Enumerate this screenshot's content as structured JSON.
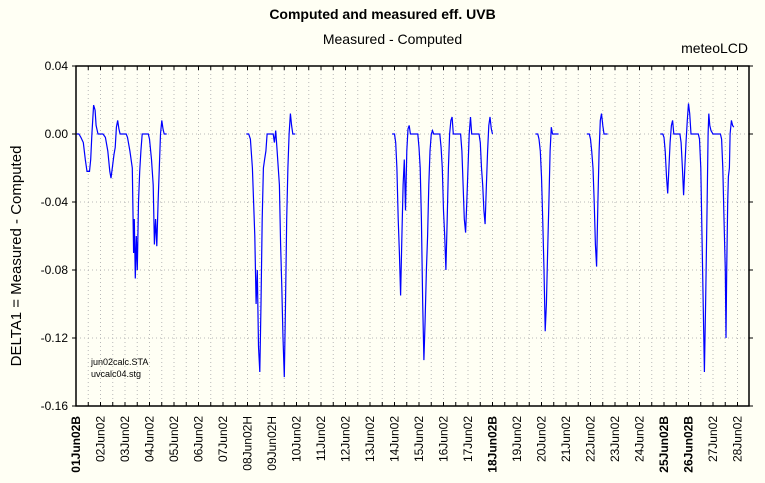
{
  "chart_data": {
    "type": "line",
    "title": "Computed and measured eff. UVB",
    "subtitle": "Measured - Computed",
    "brand": "meteoLCD",
    "ylabel": "DELTA1 = Measured - Computed",
    "xlabel": "",
    "ylim": [
      -0.16,
      0.04
    ],
    "yticks": [
      "0.04",
      "0.00",
      "-0.04",
      "-0.08",
      "-0.12",
      "-0.16"
    ],
    "ytick_values": [
      0.04,
      0.0,
      -0.04,
      -0.08,
      -0.12,
      -0.16
    ],
    "xlim_days": [
      0,
      27.45
    ],
    "grid": true,
    "line_color": "#0000ff",
    "xticks": [
      {
        "label": "01Jun02B",
        "bold": true
      },
      {
        "label": "02Jun02",
        "bold": false
      },
      {
        "label": "03Jun02",
        "bold": false
      },
      {
        "label": "04Jun02",
        "bold": false
      },
      {
        "label": "05Jun02",
        "bold": false
      },
      {
        "label": "06Jun02",
        "bold": false
      },
      {
        "label": "07Jun02",
        "bold": false
      },
      {
        "label": "08Jun02H",
        "bold": false
      },
      {
        "label": "09Jun02H",
        "bold": false
      },
      {
        "label": "10Jun02",
        "bold": false
      },
      {
        "label": "11Jun02",
        "bold": false
      },
      {
        "label": "12Jun02",
        "bold": false
      },
      {
        "label": "13Jun02",
        "bold": false
      },
      {
        "label": "14Jun02",
        "bold": false
      },
      {
        "label": "15Jun02",
        "bold": false
      },
      {
        "label": "16Jun02",
        "bold": false
      },
      {
        "label": "17Jun02",
        "bold": false
      },
      {
        "label": "18Jun02B",
        "bold": true
      },
      {
        "label": "19Jun02",
        "bold": false
      },
      {
        "label": "20Jun02",
        "bold": false
      },
      {
        "label": "21Jun02",
        "bold": false
      },
      {
        "label": "22Jun02",
        "bold": false
      },
      {
        "label": "23Jun02",
        "bold": false
      },
      {
        "label": "24Jun02",
        "bold": false
      },
      {
        "label": "25Jun02B",
        "bold": true
      },
      {
        "label": "26Jun02B",
        "bold": true
      },
      {
        "label": "27Jun02",
        "bold": false
      },
      {
        "label": "28Jun02",
        "bold": false
      }
    ],
    "annotations": [
      "jun02calc.STA",
      "uvcalc04.stg"
    ],
    "series": [
      {
        "name": "DELTA1",
        "segments": [
          [
            [
              0.0,
              0.0
            ],
            [
              0.12,
              0.0
            ],
            [
              0.2,
              -0.002
            ],
            [
              0.3,
              -0.005
            ],
            [
              0.38,
              -0.015
            ],
            [
              0.45,
              -0.022
            ],
            [
              0.55,
              -0.022
            ],
            [
              0.6,
              -0.015
            ],
            [
              0.65,
              0.0
            ],
            [
              0.72,
              0.017
            ],
            [
              0.78,
              0.014
            ],
            [
              0.82,
              0.005
            ],
            [
              0.9,
              0.0
            ],
            [
              1.1,
              0.0
            ],
            [
              1.2,
              -0.002
            ],
            [
              1.3,
              -0.01
            ],
            [
              1.38,
              -0.022
            ],
            [
              1.43,
              -0.026
            ],
            [
              1.48,
              -0.02
            ],
            [
              1.55,
              -0.012
            ],
            [
              1.6,
              -0.008
            ],
            [
              1.65,
              0.004
            ],
            [
              1.7,
              0.008
            ],
            [
              1.75,
              0.003
            ],
            [
              1.8,
              0.0
            ],
            [
              2.05,
              0.0
            ],
            [
              2.1,
              -0.002
            ],
            [
              2.2,
              -0.01
            ],
            [
              2.3,
              -0.02
            ],
            [
              2.35,
              -0.07
            ],
            [
              2.38,
              -0.05
            ],
            [
              2.42,
              -0.085
            ],
            [
              2.46,
              -0.06
            ],
            [
              2.5,
              -0.08
            ],
            [
              2.55,
              -0.04
            ],
            [
              2.6,
              -0.022
            ],
            [
              2.65,
              -0.01
            ],
            [
              2.7,
              0.0
            ],
            [
              2.95,
              0.0
            ],
            [
              3.0,
              -0.003
            ],
            [
              3.08,
              -0.015
            ],
            [
              3.15,
              -0.03
            ],
            [
              3.2,
              -0.065
            ],
            [
              3.25,
              -0.05
            ],
            [
              3.3,
              -0.066
            ],
            [
              3.35,
              -0.04
            ],
            [
              3.4,
              -0.02
            ],
            [
              3.45,
              0.0
            ],
            [
              3.5,
              0.008
            ],
            [
              3.55,
              0.003
            ],
            [
              3.6,
              0.0
            ],
            [
              3.7,
              0.0
            ]
          ],
          [
            [
              6.95,
              0.0
            ],
            [
              7.05,
              0.0
            ],
            [
              7.12,
              -0.003
            ],
            [
              7.2,
              -0.02
            ],
            [
              7.25,
              -0.04
            ],
            [
              7.3,
              -0.06
            ],
            [
              7.35,
              -0.1
            ],
            [
              7.4,
              -0.08
            ],
            [
              7.45,
              -0.125
            ],
            [
              7.5,
              -0.14
            ],
            [
              7.55,
              -0.1
            ],
            [
              7.6,
              -0.05
            ],
            [
              7.65,
              -0.02
            ],
            [
              7.7,
              -0.015
            ],
            [
              7.75,
              -0.01
            ],
            [
              7.8,
              0.0
            ],
            [
              8.05,
              0.0
            ],
            [
              8.1,
              -0.005
            ],
            [
              8.15,
              0.002
            ],
            [
              8.2,
              -0.008
            ],
            [
              8.3,
              -0.03
            ],
            [
              8.35,
              -0.065
            ],
            [
              8.4,
              -0.09
            ],
            [
              8.45,
              -0.12
            ],
            [
              8.5,
              -0.143
            ],
            [
              8.55,
              -0.1
            ],
            [
              8.6,
              -0.05
            ],
            [
              8.65,
              -0.02
            ],
            [
              8.7,
              0.0
            ],
            [
              8.75,
              0.012
            ],
            [
              8.8,
              0.005
            ],
            [
              8.85,
              0.0
            ],
            [
              8.95,
              0.0
            ]
          ],
          [
            [
              12.9,
              0.0
            ],
            [
              13.0,
              0.0
            ],
            [
              13.05,
              -0.005
            ],
            [
              13.1,
              -0.02
            ],
            [
              13.15,
              -0.05
            ],
            [
              13.2,
              -0.07
            ],
            [
              13.25,
              -0.095
            ],
            [
              13.3,
              -0.06
            ],
            [
              13.35,
              -0.03
            ],
            [
              13.4,
              -0.015
            ],
            [
              13.45,
              -0.045
            ],
            [
              13.5,
              -0.01
            ],
            [
              13.55,
              0.003
            ],
            [
              13.6,
              0.005
            ],
            [
              13.65,
              0.0
            ],
            [
              13.95,
              0.0
            ],
            [
              14.0,
              -0.008
            ],
            [
              14.05,
              -0.02
            ],
            [
              14.1,
              -0.05
            ],
            [
              14.15,
              -0.1
            ],
            [
              14.2,
              -0.133
            ],
            [
              14.25,
              -0.11
            ],
            [
              14.3,
              -0.08
            ],
            [
              14.35,
              -0.06
            ],
            [
              14.4,
              -0.03
            ],
            [
              14.45,
              -0.01
            ],
            [
              14.5,
              0.0
            ],
            [
              14.55,
              0.002
            ],
            [
              14.6,
              0.0
            ],
            [
              14.85,
              0.0
            ],
            [
              14.9,
              -0.008
            ],
            [
              14.95,
              -0.02
            ],
            [
              15.0,
              -0.045
            ],
            [
              15.05,
              -0.06
            ],
            [
              15.1,
              -0.08
            ],
            [
              15.15,
              -0.05
            ],
            [
              15.2,
              -0.02
            ],
            [
              15.25,
              0.0
            ],
            [
              15.3,
              0.008
            ],
            [
              15.35,
              0.01
            ],
            [
              15.4,
              0.0
            ],
            [
              15.7,
              0.0
            ],
            [
              15.75,
              -0.01
            ],
            [
              15.8,
              -0.03
            ],
            [
              15.85,
              -0.05
            ],
            [
              15.9,
              -0.058
            ],
            [
              15.95,
              -0.04
            ],
            [
              16.0,
              -0.02
            ],
            [
              16.05,
              -0.0
            ],
            [
              16.1,
              0.01
            ],
            [
              16.15,
              0.0
            ],
            [
              16.45,
              0.0
            ],
            [
              16.5,
              -0.005
            ],
            [
              16.55,
              -0.02
            ],
            [
              16.6,
              -0.03
            ],
            [
              16.65,
              -0.045
            ],
            [
              16.7,
              -0.053
            ],
            [
              16.75,
              -0.03
            ],
            [
              16.8,
              -0.01
            ],
            [
              16.85,
              0.005
            ],
            [
              16.9,
              0.01
            ],
            [
              16.95,
              0.003
            ],
            [
              17.0,
              0.0
            ]
          ],
          [
            [
              18.75,
              0.0
            ],
            [
              18.85,
              0.0
            ],
            [
              18.9,
              -0.003
            ],
            [
              18.95,
              -0.01
            ],
            [
              19.0,
              -0.025
            ],
            [
              19.05,
              -0.05
            ],
            [
              19.1,
              -0.08
            ],
            [
              19.15,
              -0.116
            ],
            [
              19.2,
              -0.1
            ],
            [
              19.25,
              -0.07
            ],
            [
              19.3,
              -0.04
            ],
            [
              19.35,
              -0.01
            ],
            [
              19.4,
              0.004
            ],
            [
              19.45,
              0.0
            ],
            [
              19.5,
              0.0
            ],
            [
              19.7,
              0.0
            ]
          ],
          [
            [
              20.85,
              0.0
            ],
            [
              20.95,
              0.0
            ],
            [
              21.0,
              -0.003
            ],
            [
              21.05,
              -0.01
            ],
            [
              21.1,
              -0.02
            ],
            [
              21.15,
              -0.04
            ],
            [
              21.2,
              -0.065
            ],
            [
              21.25,
              -0.078
            ],
            [
              21.3,
              -0.04
            ],
            [
              21.35,
              -0.01
            ],
            [
              21.4,
              0.008
            ],
            [
              21.45,
              0.012
            ],
            [
              21.5,
              0.005
            ],
            [
              21.55,
              0.0
            ],
            [
              21.7,
              0.0
            ]
          ],
          [
            [
              23.85,
              0.0
            ],
            [
              23.95,
              0.0
            ],
            [
              24.0,
              -0.002
            ],
            [
              24.05,
              -0.01
            ],
            [
              24.1,
              -0.025
            ],
            [
              24.15,
              -0.035
            ],
            [
              24.2,
              -0.02
            ],
            [
              24.25,
              -0.005
            ],
            [
              24.3,
              0.005
            ],
            [
              24.35,
              0.008
            ],
            [
              24.4,
              0.0
            ],
            [
              24.65,
              0.0
            ],
            [
              24.7,
              -0.005
            ],
            [
              24.75,
              -0.02
            ],
            [
              24.8,
              -0.036
            ],
            [
              24.85,
              -0.02
            ],
            [
              24.9,
              -0.005
            ],
            [
              24.95,
              0.008
            ],
            [
              25.0,
              0.018
            ],
            [
              25.05,
              0.012
            ],
            [
              25.1,
              0.0
            ],
            [
              25.4,
              0.0
            ],
            [
              25.45,
              -0.003
            ],
            [
              25.5,
              -0.02
            ],
            [
              25.55,
              -0.06
            ],
            [
              25.6,
              -0.1
            ],
            [
              25.65,
              -0.14
            ],
            [
              25.7,
              -0.1
            ],
            [
              25.75,
              -0.05
            ],
            [
              25.8,
              -0.0
            ],
            [
              25.83,
              0.012
            ],
            [
              25.87,
              0.005
            ],
            [
              25.92,
              0.002
            ],
            [
              26.0,
              0.0
            ],
            [
              26.3,
              0.0
            ],
            [
              26.35,
              -0.003
            ],
            [
              26.4,
              -0.02
            ],
            [
              26.45,
              -0.05
            ],
            [
              26.5,
              -0.08
            ],
            [
              26.53,
              -0.12
            ],
            [
              26.56,
              -0.08
            ],
            [
              26.6,
              -0.04
            ],
            [
              26.63,
              -0.025
            ],
            [
              26.67,
              -0.02
            ],
            [
              26.7,
              0.0
            ],
            [
              26.75,
              0.008
            ],
            [
              26.8,
              0.005
            ],
            [
              26.85,
              0.004
            ]
          ]
        ]
      }
    ]
  }
}
